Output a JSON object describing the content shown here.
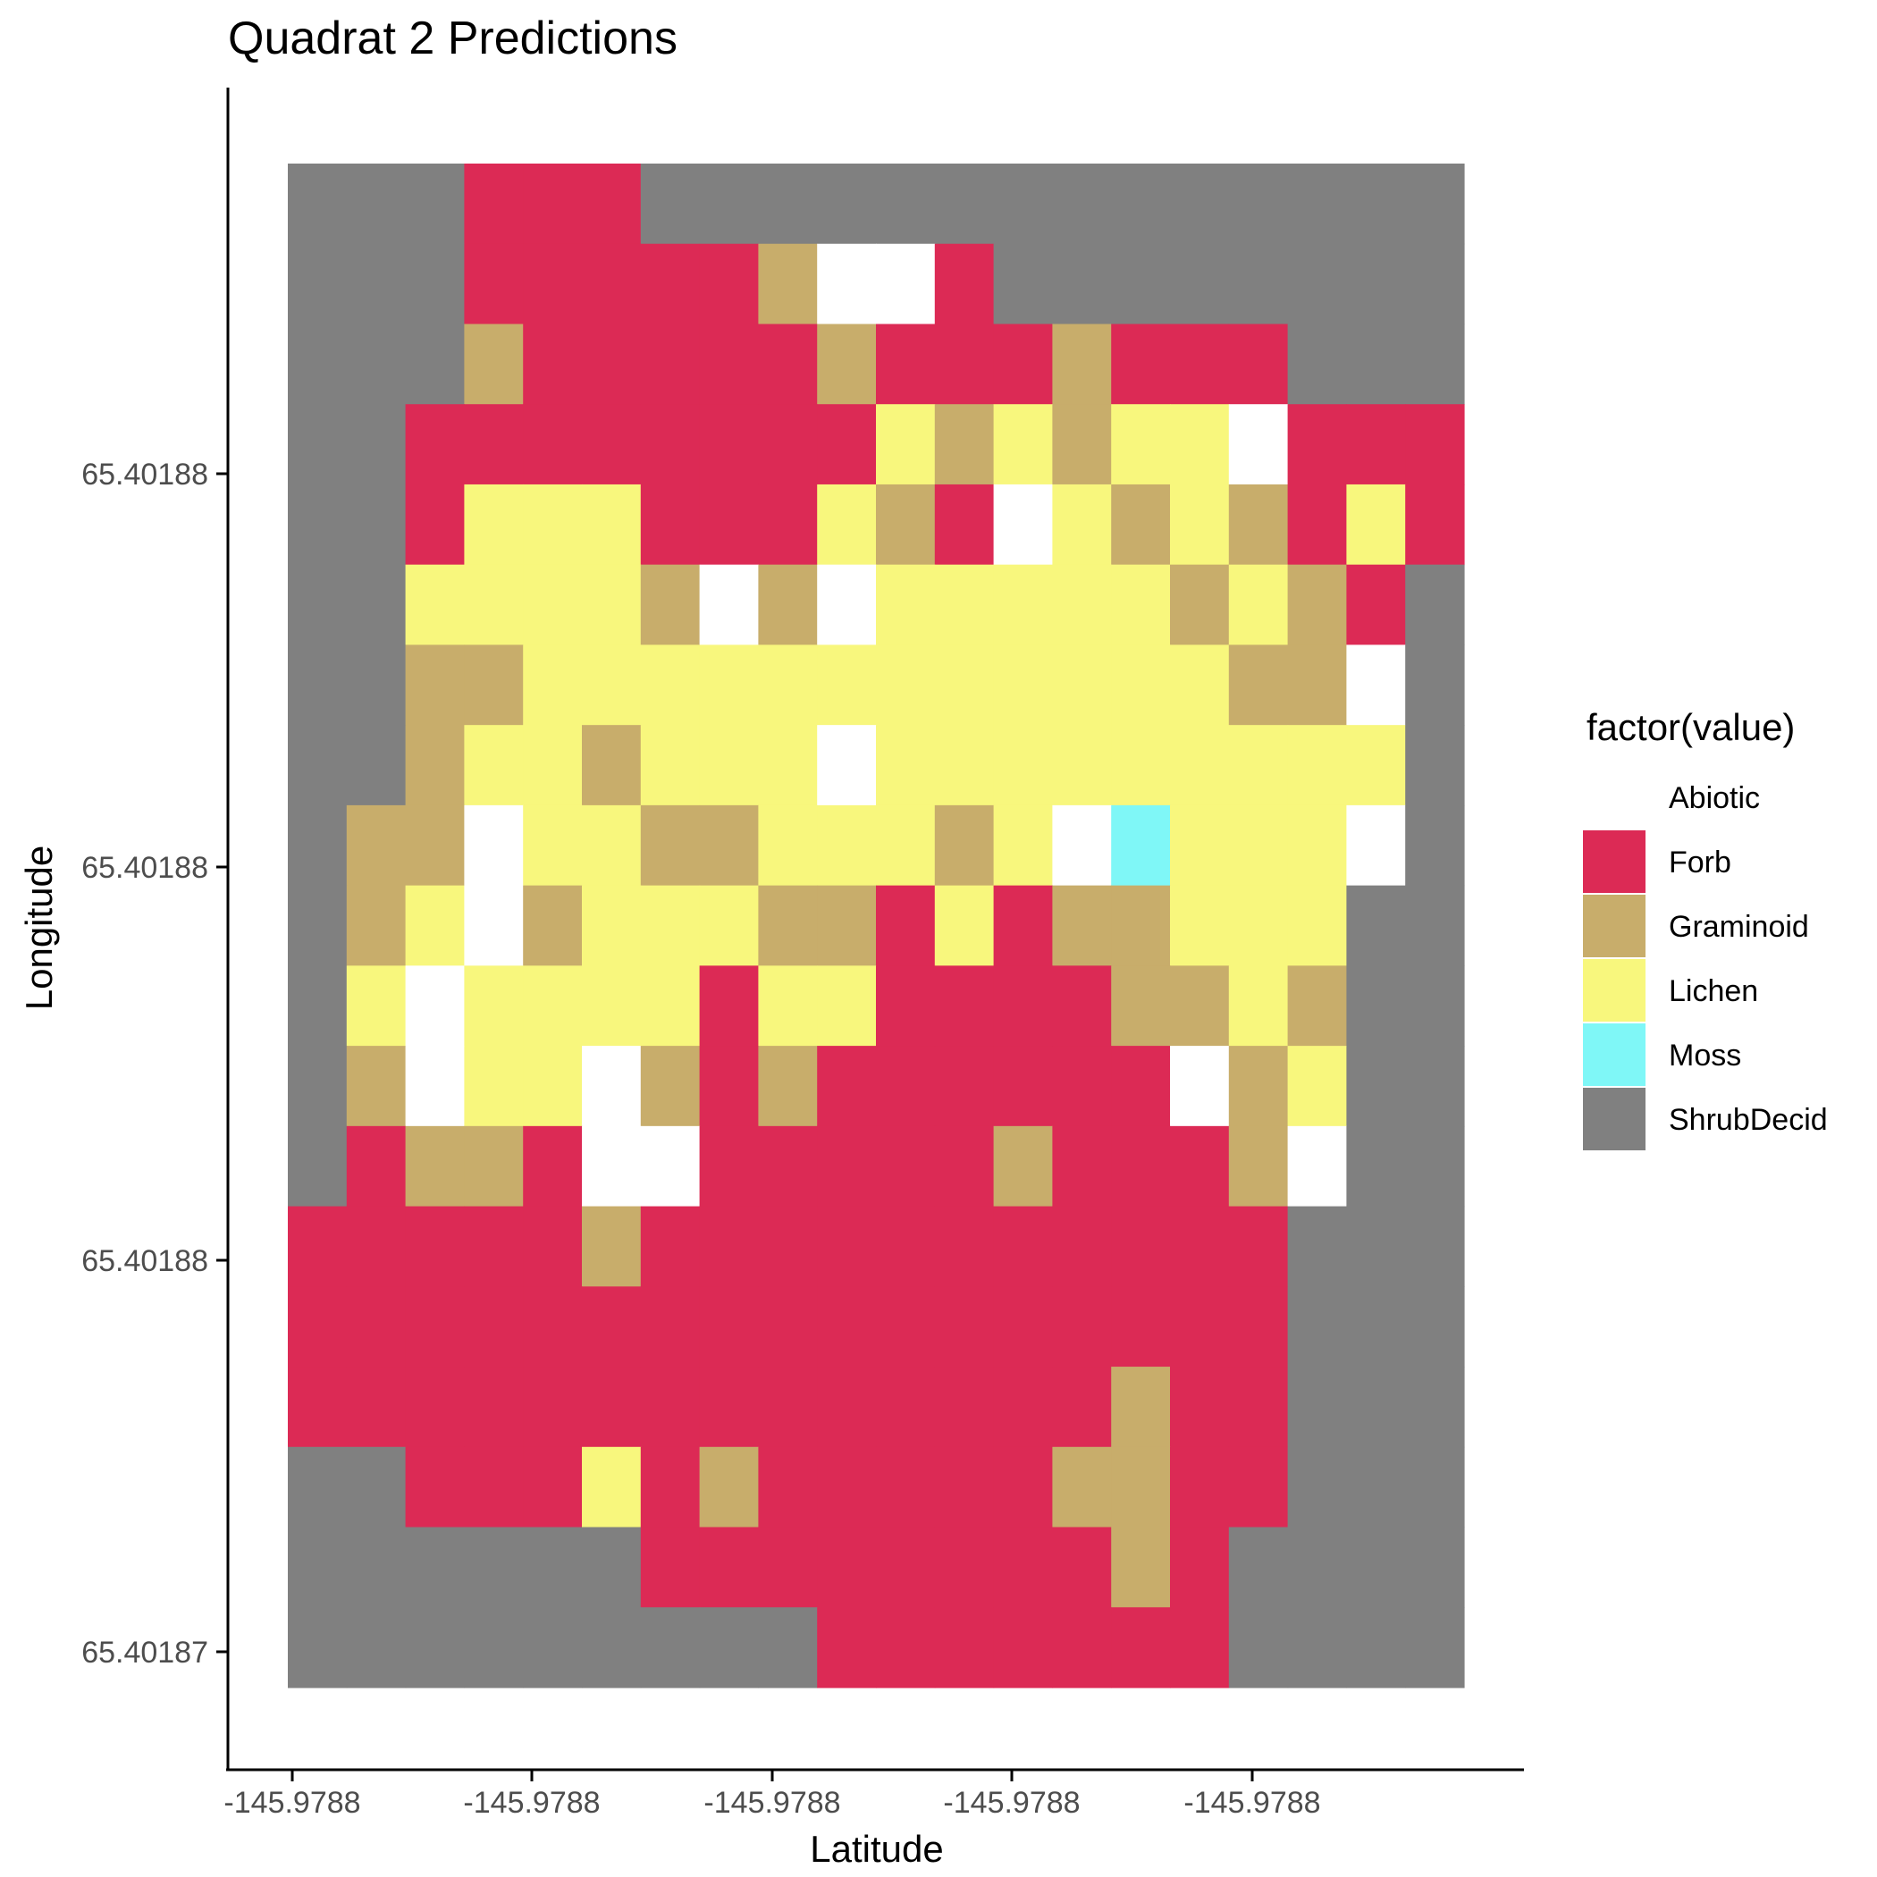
{
  "chart_data": {
    "type": "heatmap",
    "title": "Quadrat 2 Predictions",
    "xlabel": "Latitude",
    "ylabel": "Longitude",
    "x_tick_labels": [
      "-145.9788",
      "-145.9788",
      "-145.9788",
      "-145.9788",
      "-145.9788"
    ],
    "y_tick_labels": [
      "65.40188",
      "65.40188",
      "65.40188",
      "65.40187"
    ],
    "grid": false,
    "legend": {
      "title": "factor(value)",
      "position": "right",
      "entries": [
        {
          "code": "A",
          "label": "Abiotic",
          "color": "#ffffff"
        },
        {
          "code": "F",
          "label": "Forb",
          "color": "#dc2a55"
        },
        {
          "code": "G",
          "label": "Graminoid",
          "color": "#c8ad6b"
        },
        {
          "code": "L",
          "label": "Lichen",
          "color": "#f8f77d"
        },
        {
          "code": "M",
          "label": "Moss",
          "color": "#7ff7f7"
        },
        {
          "code": "S",
          "label": "ShrubDecid",
          "color": "#808080"
        }
      ]
    },
    "grid_rows_top_to_bottom": [
      "SSSFFFSSSSSSSSSSSSSS",
      "SSSFFFFFGAAFSSSSSSSS",
      "SSSGFFFFFGFFFGFFFSSS",
      "SSFFFFFFFFLGLGLLAFFF",
      "SSFLLLFFFLGFALGLGFLF",
      "SSLLLLGAGALLLLLGLGFS",
      "SSGGLLLLLLLLLLLLGGAS",
      "SSGLLGLLLALLLLLLLLLS",
      "SGGALLGGLLLGLAMLLLAS",
      "SGLAGLLLGGFLFGGLLLSS",
      "SLALLLLFLLFFFFGGLGSS",
      "SGALLAGFGFFFFFFAGLSS",
      "SFGGFAAFFFFFGFFFGASS",
      "FFFFFGFFFFFFFFFFFSSS",
      "FFFFFFFFFFFFFFFFFSSS",
      "FFFFFFFFFFFFFFGFFSSS",
      "SSFFFLFGFFFFFGGFFSSS",
      "SSSSSSFFFFFFFFGFSSSS",
      "SSSSSSSSSFFFFFFFSSSS"
    ]
  }
}
